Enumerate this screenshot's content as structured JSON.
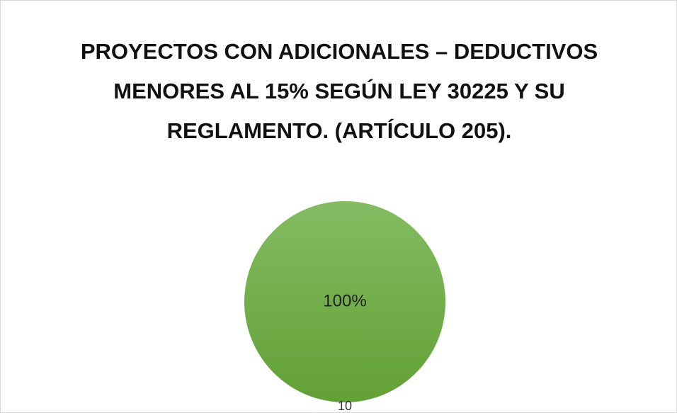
{
  "chart_data": {
    "type": "pie",
    "title": "PROYECTOS CON ADICIONALES – DEDUCTIVOS MENORES AL 15% SEGÚN LEY 30225 Y SU REGLAMENTO. (ARTÍCULO 205).",
    "categories": [
      "10"
    ],
    "values": [
      100
    ],
    "value_labels": [
      "100%"
    ],
    "colors": [
      "#70ad47"
    ]
  }
}
